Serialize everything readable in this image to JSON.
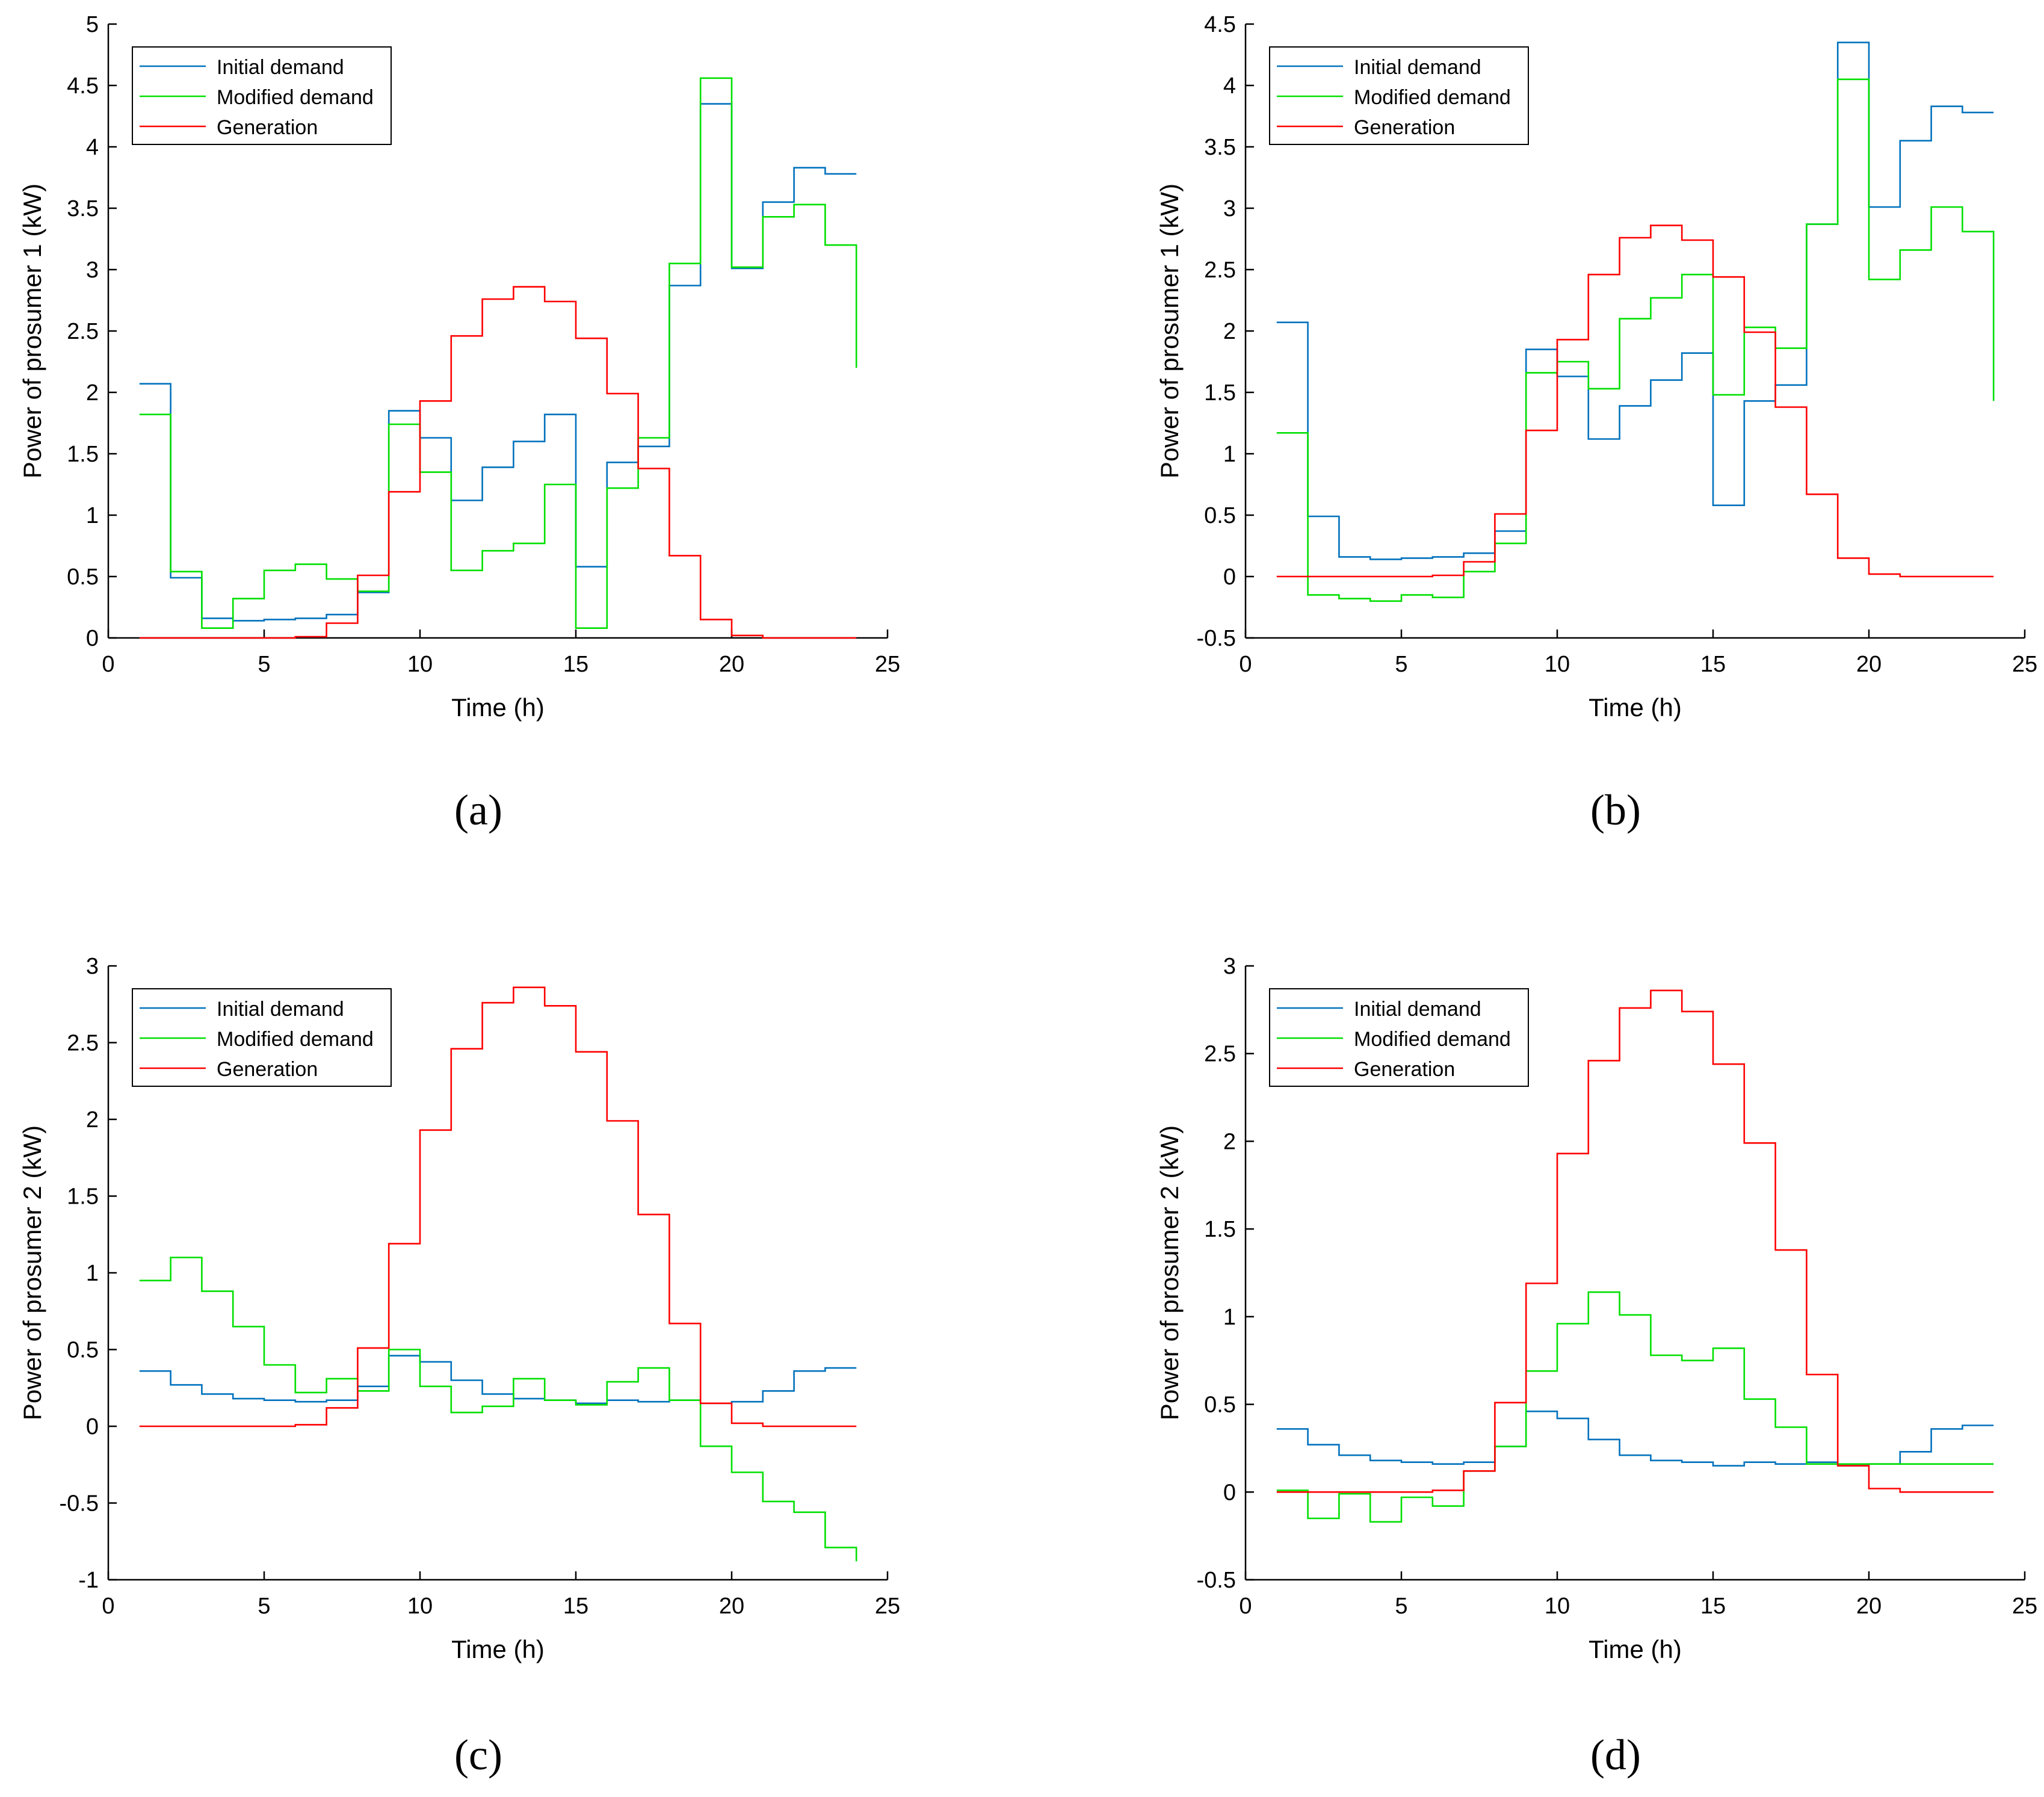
{
  "figure": {
    "captions": [
      "(a)",
      "(b)",
      "(c)",
      "(d)"
    ]
  },
  "colors": {
    "initial": "#0072BD",
    "modified": "#00E000",
    "generation": "#FF0000",
    "axis": "#000000"
  },
  "chart_data": [
    {
      "type": "line",
      "step": true,
      "caption": "(a)",
      "xlabel": "Time (h)",
      "ylabel": "Power of prosumer 1 (kW)",
      "xlim": [
        0,
        25
      ],
      "ylim": [
        0,
        5
      ],
      "xticks": [
        0,
        5,
        10,
        15,
        20,
        25
      ],
      "xtick_labels": [
        "0",
        "5",
        "10",
        "15",
        "20",
        "25"
      ],
      "yticks": [
        0,
        0.5,
        1,
        1.5,
        2,
        2.5,
        3,
        3.5,
        4,
        4.5,
        5
      ],
      "ytick_labels": [
        "0",
        "0.5",
        "1",
        "1.5",
        "2",
        "2.5",
        "3",
        "3.5",
        "4",
        "4.5",
        "5"
      ],
      "legend_position": "top-left",
      "x": [
        1,
        2,
        3,
        4,
        5,
        6,
        7,
        8,
        9,
        10,
        11,
        12,
        13,
        14,
        15,
        16,
        17,
        18,
        19,
        20,
        21,
        22,
        23,
        24
      ],
      "series": [
        {
          "name": "Initial demand",
          "color_key": "initial",
          "values": [
            2.07,
            0.49,
            0.16,
            0.14,
            0.15,
            0.16,
            0.19,
            0.37,
            1.85,
            1.63,
            1.12,
            1.39,
            1.6,
            1.82,
            0.58,
            1.43,
            1.56,
            2.87,
            4.35,
            3.01,
            3.55,
            3.83,
            3.78,
            3.78
          ]
        },
        {
          "name": "Modified demand",
          "color_key": "modified",
          "values": [
            1.82,
            0.54,
            0.08,
            0.32,
            0.55,
            0.6,
            0.48,
            0.38,
            1.74,
            1.35,
            0.55,
            0.71,
            0.77,
            1.25,
            0.08,
            1.22,
            1.63,
            3.05,
            4.56,
            3.02,
            3.43,
            3.53,
            3.2,
            2.2
          ]
        },
        {
          "name": "Generation",
          "color_key": "generation",
          "values": [
            0,
            0,
            0,
            0,
            0,
            0.01,
            0.12,
            0.51,
            1.19,
            1.93,
            2.46,
            2.76,
            2.86,
            2.74,
            2.44,
            1.99,
            1.38,
            0.67,
            0.15,
            0.02,
            0,
            0,
            0,
            0
          ]
        }
      ]
    },
    {
      "type": "line",
      "step": true,
      "caption": "(b)",
      "xlabel": "Time (h)",
      "ylabel": "Power of prosumer 1 (kW)",
      "xlim": [
        0,
        25
      ],
      "ylim": [
        -0.5,
        4.5
      ],
      "xticks": [
        0,
        5,
        10,
        15,
        20,
        25
      ],
      "xtick_labels": [
        "0",
        "5",
        "10",
        "15",
        "20",
        "25"
      ],
      "yticks": [
        -0.5,
        0,
        0.5,
        1,
        1.5,
        2,
        2.5,
        3,
        3.5,
        4,
        4.5
      ],
      "ytick_labels": [
        "-0.5",
        "0",
        "0.5",
        "1",
        "1.5",
        "2",
        "2.5",
        "3",
        "3.5",
        "4",
        "4.5"
      ],
      "legend_position": "top-left",
      "x": [
        1,
        2,
        3,
        4,
        5,
        6,
        7,
        8,
        9,
        10,
        11,
        12,
        13,
        14,
        15,
        16,
        17,
        18,
        19,
        20,
        21,
        22,
        23,
        24
      ],
      "series": [
        {
          "name": "Initial demand",
          "color_key": "initial",
          "values": [
            2.07,
            0.49,
            0.16,
            0.14,
            0.15,
            0.16,
            0.19,
            0.37,
            1.85,
            1.63,
            1.12,
            1.39,
            1.6,
            1.82,
            0.58,
            1.43,
            1.56,
            2.87,
            4.35,
            3.01,
            3.55,
            3.83,
            3.78,
            3.78
          ]
        },
        {
          "name": "Modified demand",
          "color_key": "modified",
          "values": [
            1.17,
            -0.15,
            -0.18,
            -0.2,
            -0.15,
            -0.17,
            0.04,
            0.27,
            1.66,
            1.75,
            1.53,
            2.1,
            2.27,
            2.46,
            1.48,
            2.03,
            1.86,
            2.87,
            4.05,
            2.42,
            2.66,
            3.01,
            2.81,
            1.43
          ]
        },
        {
          "name": "Generation",
          "color_key": "generation",
          "values": [
            0,
            0,
            0,
            0,
            0,
            0.01,
            0.12,
            0.51,
            1.19,
            1.93,
            2.46,
            2.76,
            2.86,
            2.74,
            2.44,
            1.99,
            1.38,
            0.67,
            0.15,
            0.02,
            0,
            0,
            0,
            0
          ]
        }
      ]
    },
    {
      "type": "line",
      "step": true,
      "caption": "(c)",
      "xlabel": "Time (h)",
      "ylabel": "Power of prosumer 2 (kW)",
      "xlim": [
        0,
        25
      ],
      "ylim": [
        -1,
        3
      ],
      "xticks": [
        0,
        5,
        10,
        15,
        20,
        25
      ],
      "xtick_labels": [
        "0",
        "5",
        "10",
        "15",
        "20",
        "25"
      ],
      "yticks": [
        -1,
        -0.5,
        0,
        0.5,
        1,
        1.5,
        2,
        2.5,
        3
      ],
      "ytick_labels": [
        "-1",
        "-0.5",
        "0",
        "0.5",
        "1",
        "1.5",
        "2",
        "2.5",
        "3"
      ],
      "legend_position": "top-left",
      "x": [
        1,
        2,
        3,
        4,
        5,
        6,
        7,
        8,
        9,
        10,
        11,
        12,
        13,
        14,
        15,
        16,
        17,
        18,
        19,
        20,
        21,
        22,
        23,
        24
      ],
      "series": [
        {
          "name": "Initial demand",
          "color_key": "initial",
          "values": [
            0.36,
            0.27,
            0.21,
            0.18,
            0.17,
            0.16,
            0.17,
            0.26,
            0.46,
            0.42,
            0.3,
            0.21,
            0.18,
            0.17,
            0.15,
            0.17,
            0.16,
            0.17,
            0.15,
            0.16,
            0.23,
            0.36,
            0.38,
            0.38
          ]
        },
        {
          "name": "Modified demand",
          "color_key": "modified",
          "values": [
            0.95,
            1.1,
            0.88,
            0.65,
            0.4,
            0.22,
            0.31,
            0.23,
            0.5,
            0.26,
            0.09,
            0.13,
            0.31,
            0.17,
            0.14,
            0.29,
            0.38,
            0.17,
            -0.13,
            -0.3,
            -0.49,
            -0.56,
            -0.79,
            -0.88
          ]
        },
        {
          "name": "Generation",
          "color_key": "generation",
          "values": [
            0,
            0,
            0,
            0,
            0,
            0.01,
            0.12,
            0.51,
            1.19,
            1.93,
            2.46,
            2.76,
            2.86,
            2.74,
            2.44,
            1.99,
            1.38,
            0.67,
            0.15,
            0.02,
            0,
            0,
            0,
            0
          ]
        }
      ]
    },
    {
      "type": "line",
      "step": true,
      "caption": "(d)",
      "xlabel": "Time (h)",
      "ylabel": "Power of prosumer 2 (kW)",
      "xlim": [
        0,
        25
      ],
      "ylim": [
        -0.5,
        3
      ],
      "xticks": [
        0,
        5,
        10,
        15,
        20,
        25
      ],
      "xtick_labels": [
        "0",
        "5",
        "10",
        "15",
        "20",
        "25"
      ],
      "yticks": [
        -0.5,
        0,
        0.5,
        1,
        1.5,
        2,
        2.5,
        3
      ],
      "ytick_labels": [
        "-0.5",
        "0",
        "0.5",
        "1",
        "1.5",
        "2",
        "2.5",
        "3"
      ],
      "legend_position": "top-left",
      "x": [
        1,
        2,
        3,
        4,
        5,
        6,
        7,
        8,
        9,
        10,
        11,
        12,
        13,
        14,
        15,
        16,
        17,
        18,
        19,
        20,
        21,
        22,
        23,
        24
      ],
      "series": [
        {
          "name": "Initial demand",
          "color_key": "initial",
          "values": [
            0.36,
            0.27,
            0.21,
            0.18,
            0.17,
            0.16,
            0.17,
            0.26,
            0.46,
            0.42,
            0.3,
            0.21,
            0.18,
            0.17,
            0.15,
            0.17,
            0.16,
            0.17,
            0.15,
            0.16,
            0.23,
            0.36,
            0.38,
            0.38
          ]
        },
        {
          "name": "Modified demand",
          "color_key": "modified",
          "values": [
            0.01,
            -0.15,
            -0.01,
            -0.17,
            -0.03,
            -0.08,
            0.12,
            0.26,
            0.69,
            0.96,
            1.14,
            1.01,
            0.78,
            0.75,
            0.82,
            0.53,
            0.37,
            0.16,
            0.16,
            0.16,
            0.16,
            0.16,
            0.16,
            0.16
          ]
        },
        {
          "name": "Generation",
          "color_key": "generation",
          "values": [
            0,
            0,
            0,
            0,
            0,
            0.01,
            0.12,
            0.51,
            1.19,
            1.93,
            2.46,
            2.76,
            2.86,
            2.74,
            2.44,
            1.99,
            1.38,
            0.67,
            0.15,
            0.02,
            0,
            0,
            0,
            0
          ]
        }
      ]
    }
  ]
}
